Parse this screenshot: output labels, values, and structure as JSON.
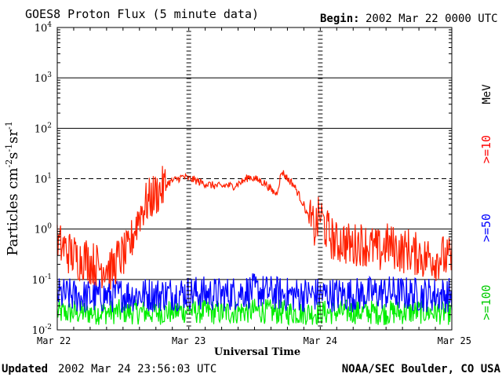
{
  "title": "GOES8 Proton Flux (5 minute data)",
  "begin_label": "Begin:",
  "begin_value": "2002 Mar 22 0000 UTC",
  "footer_left_label": "Updated",
  "footer_left_value": "2002 Mar 24 23:56:03 UTC",
  "footer_right": "NOAA/SEC Boulder, CO USA",
  "chart_data": {
    "type": "line",
    "title": "GOES8 Proton Flux (5 minute data)",
    "xlabel": "Universal Time",
    "ylabel": "Particles cm-2s-1sr-1",
    "y_scale": "log",
    "ylim": [
      0.01,
      10000
    ],
    "xlim": [
      0,
      72
    ],
    "x_unit": "hours since begin",
    "x_ticks": [
      {
        "x": 0,
        "label": "Mar 22"
      },
      {
        "x": 24,
        "label": "Mar 23"
      },
      {
        "x": 48,
        "label": "Mar 24"
      },
      {
        "x": 72,
        "label": "Mar 25"
      }
    ],
    "y_ticks": [
      {
        "base": "10",
        "exp": "-2"
      },
      {
        "base": "10",
        "exp": "-1"
      },
      {
        "base": "10",
        "exp": "0"
      },
      {
        "base": "10",
        "exp": "1"
      },
      {
        "base": "10",
        "exp": "2"
      },
      {
        "base": "10",
        "exp": "3"
      },
      {
        "base": "10",
        "exp": "4"
      }
    ],
    "threshold_lines": [
      {
        "y": 10,
        "style": "dashed"
      },
      {
        "y": 0.1,
        "style": "solid",
        "color": "#000000"
      }
    ],
    "right_labels": {
      "unit": "MeV",
      "items": [
        {
          "text": ">=10",
          "color": "#ff0000"
        },
        {
          "text": ">=50",
          "color": "#0000ff"
        },
        {
          "text": ">=100",
          "color": "#00cc00"
        }
      ]
    },
    "series": [
      {
        "name": ">=10 MeV",
        "color": "#ff2000",
        "x": [
          0,
          1,
          2,
          3,
          4,
          5,
          6,
          7,
          8,
          9,
          10,
          11,
          12,
          13,
          14,
          15,
          16,
          17,
          18,
          19,
          20,
          21,
          22,
          23,
          24,
          25,
          26,
          27,
          28,
          29,
          30,
          31,
          32,
          33,
          34,
          35,
          36,
          37,
          38,
          39,
          40,
          41,
          42,
          43,
          44,
          45,
          46,
          47,
          48,
          49,
          50,
          51,
          52,
          53,
          54,
          55,
          56,
          57,
          58,
          59,
          60,
          61,
          62,
          63,
          64,
          65,
          66,
          67,
          68,
          69,
          70,
          71,
          72
        ],
        "values": [
          0.5,
          0.45,
          0.35,
          0.3,
          0.25,
          0.28,
          0.22,
          0.2,
          0.18,
          0.2,
          0.15,
          0.25,
          0.3,
          0.35,
          0.9,
          2.0,
          3.0,
          4.0,
          5.0,
          6.0,
          8.0,
          9.0,
          10.0,
          11.0,
          10.0,
          9.5,
          8.5,
          8.0,
          7.5,
          7.2,
          7.0,
          7.5,
          7.0,
          8.0,
          9.0,
          11.0,
          10.0,
          9.0,
          8.0,
          6.0,
          5.0,
          14.0,
          10.0,
          8.0,
          5.0,
          3.0,
          1.5,
          1.0,
          2.0,
          1.0,
          0.7,
          0.5,
          0.6,
          0.5,
          0.45,
          0.55,
          0.5,
          0.45,
          0.4,
          0.35,
          0.5,
          0.45,
          0.4,
          0.35,
          0.4,
          0.3,
          0.35,
          0.25,
          0.3,
          0.25,
          0.3,
          0.25,
          0.25
        ]
      },
      {
        "name": ">=50 MeV",
        "color": "#0000ff",
        "x": [
          0,
          6,
          12,
          18,
          24,
          30,
          36,
          42,
          48,
          54,
          60,
          66,
          72
        ],
        "values": [
          0.05,
          0.045,
          0.05,
          0.05,
          0.055,
          0.05,
          0.06,
          0.05,
          0.05,
          0.05,
          0.055,
          0.05,
          0.05
        ]
      },
      {
        "name": ">=100 MeV",
        "color": "#00ee00",
        "x": [
          0,
          6,
          12,
          18,
          24,
          30,
          36,
          42,
          48,
          54,
          60,
          66,
          72
        ],
        "values": [
          0.022,
          0.022,
          0.023,
          0.022,
          0.024,
          0.022,
          0.024,
          0.022,
          0.022,
          0.023,
          0.022,
          0.023,
          0.022
        ]
      }
    ]
  }
}
